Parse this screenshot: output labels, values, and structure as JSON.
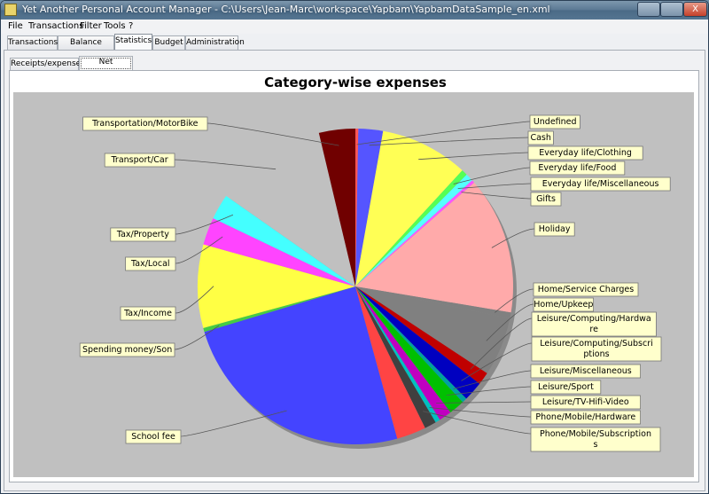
{
  "window": {
    "title": "Yet Another Personal Account Manager - C:\\Users\\Jean-Marc\\workspace\\Yapbam\\YapbamDataSample_en.xml",
    "controls": {
      "minimize": "",
      "maximize": "",
      "close": "X"
    }
  },
  "menu": [
    "File",
    "Transactions",
    "Filter",
    "Tools",
    "?"
  ],
  "tabs": [
    "Transactions",
    "Balance history",
    "Statistics",
    "Budget",
    "Administration"
  ],
  "active_tab": "Statistics",
  "subtabs": [
    "Receipts/expenses",
    "Net expenses"
  ],
  "active_subtab": "Net expenses",
  "chart_data": {
    "type": "pie",
    "title": "Category-wise expenses",
    "start_angle_deg": 90,
    "direction": "clockwise",
    "slices": [
      {
        "label": "Undefined",
        "value": 0.3,
        "color": "#ff5555"
      },
      {
        "label": "Cash",
        "value": 2.5,
        "color": "#5555ff"
      },
      {
        "label": "Everyday life/Clothing",
        "value": 9.0,
        "color": "#ffff55"
      },
      {
        "label": "Everyday life/Food",
        "value": 0.6,
        "color": "#55ff55"
      },
      {
        "label": "Everyday life/Miscellaneous",
        "value": 0.8,
        "color": "#55ffff"
      },
      {
        "label": "Gifts",
        "value": 0.3,
        "color": "#ff55ff"
      },
      {
        "label": "Holiday",
        "value": 14.0,
        "color": "#ffaaaa"
      },
      {
        "label": "Home/Service Charges",
        "value": 0.6,
        "color": "#808080"
      },
      {
        "label": "Home/Upkeep",
        "value": 6.0,
        "color": "#808080"
      },
      {
        "label": "Leisure/Computing/Hardware",
        "value": 1.3,
        "color": "#c00000"
      },
      {
        "label": "Leisure/Computing/Subscriptions",
        "value": 2.0,
        "color": "#0000c0"
      },
      {
        "label": "Leisure/Miscellaneous",
        "value": 0.5,
        "color": "#00a0a0"
      },
      {
        "label": "Leisure/Sport",
        "value": 1.6,
        "color": "#00c000"
      },
      {
        "label": "Leisure/TV-Hifi-Video",
        "value": 1.3,
        "color": "#c000c0"
      },
      {
        "label": "Phone/Mobile/Hardware",
        "value": 0.5,
        "color": "#00c0c0"
      },
      {
        "label": "Phone/Mobile/Subscriptions",
        "value": 1.2,
        "color": "#404040"
      },
      {
        "label": "",
        "value": 3.0,
        "color": "#ff4444"
      },
      {
        "label": "School fee",
        "value": 24.5,
        "color": "#4444ff"
      },
      {
        "label": "Spending money/Son",
        "value": 0.4,
        "color": "#44cc44"
      },
      {
        "label": "Tax/Income",
        "value": 8.5,
        "color": "#ffff44"
      },
      {
        "label": "Tax/Local",
        "value": 2.8,
        "color": "#ff44ff"
      },
      {
        "label": "Tax/Property",
        "value": 2.6,
        "color": "#44ffff"
      },
      {
        "label": "Transport/Car",
        "value": 11.5,
        "color": "#c0c0c0"
      },
      {
        "label": "Transportation/MotorBike",
        "value": 3.7,
        "color": "#700000"
      }
    ],
    "legend": "labels with leader lines"
  }
}
